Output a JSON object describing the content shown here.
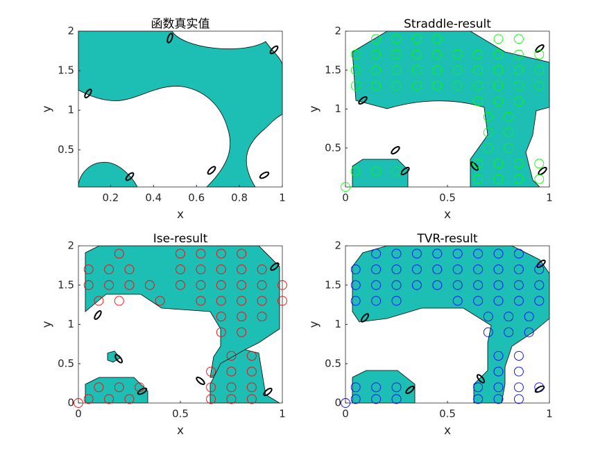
{
  "chart_data": [
    {
      "type": "contour",
      "title": "函数真实值",
      "xlabel": "x",
      "ylabel": "y",
      "xlim": [
        0.05,
        1
      ],
      "ylim": [
        0.03,
        2
      ],
      "xticks": [
        0.2,
        0.4,
        0.6,
        0.8,
        1
      ],
      "yticks": [
        0.5,
        1,
        1.5,
        2
      ]
    },
    {
      "type": "scatter",
      "title": "Straddle-result",
      "xlabel": "x",
      "ylabel": "y",
      "xlim": [
        0,
        1
      ],
      "ylim": [
        0,
        2
      ],
      "xticks": [
        0,
        0.5,
        1
      ],
      "yticks": [
        0.5,
        1,
        1.5,
        2
      ],
      "series": [
        {
          "color": "#00ff00",
          "x": [
            0.15,
            0.25,
            0.35,
            0.45,
            0.75,
            0.85,
            0.05,
            0.15,
            0.25,
            0.35,
            0.45,
            0.55,
            0.65,
            0.75,
            0.85,
            0.95,
            0.05,
            0.15,
            0.25,
            0.35,
            0.45,
            0.55,
            0.65,
            0.75,
            0.85,
            0.95,
            0.05,
            0.15,
            0.25,
            0.35,
            0.45,
            0.55,
            0.65,
            0.75,
            0.85,
            0.95,
            0.65,
            0.75,
            0.85,
            0.7,
            0.8,
            0.7,
            0.8,
            0.7,
            0.8,
            0.65,
            0.75,
            0.85,
            0.95,
            0.05,
            0.15,
            0.25,
            0.65,
            0.75,
            0.85,
            0.95,
            0
          ],
          "values": [
            1.9,
            1.9,
            1.9,
            1.9,
            1.9,
            1.9,
            1.7,
            1.7,
            1.7,
            1.7,
            1.7,
            1.7,
            1.7,
            1.7,
            1.7,
            1.7,
            1.5,
            1.5,
            1.5,
            1.5,
            1.5,
            1.5,
            1.5,
            1.5,
            1.5,
            1.5,
            1.3,
            1.3,
            1.3,
            1.3,
            1.3,
            1.3,
            1.3,
            1.3,
            1.3,
            1.3,
            1.1,
            1.1,
            1.1,
            0.9,
            0.9,
            0.7,
            0.7,
            0.5,
            0.5,
            0.3,
            0.3,
            0.3,
            0.3,
            0.2,
            0.2,
            0.2,
            0.1,
            0.1,
            0.1,
            0.1,
            0
          ]
        }
      ]
    },
    {
      "type": "scatter",
      "title": "Ise-result",
      "xlabel": "x",
      "ylabel": "y",
      "xlim": [
        0,
        1
      ],
      "ylim": [
        0,
        2
      ],
      "xticks": [
        0,
        0.5,
        1
      ],
      "yticks": [
        0,
        0.5,
        1,
        1.5,
        2
      ],
      "series": [
        {
          "color": "#ff0000",
          "x": [
            0.2,
            0.5,
            0.6,
            0.7,
            0.8,
            0.05,
            0.15,
            0.25,
            0.5,
            0.6,
            0.7,
            0.8,
            0.9,
            0.05,
            0.15,
            0.25,
            0.35,
            0.5,
            0.6,
            0.7,
            0.8,
            0.9,
            1,
            0.1,
            0.2,
            0.4,
            0.6,
            0.7,
            0.8,
            0.9,
            1,
            0.7,
            0.8,
            0.9,
            0.7,
            0.8,
            0.75,
            0.85,
            0.65,
            0.75,
            0.85,
            0.1,
            0.2,
            0.3,
            0.65,
            0.75,
            0.85,
            0.05,
            0.15,
            0.25,
            0.65,
            0.75,
            0.85,
            0
          ],
          "values": [
            1.9,
            1.9,
            1.9,
            1.9,
            1.9,
            1.7,
            1.7,
            1.7,
            1.7,
            1.7,
            1.7,
            1.7,
            1.7,
            1.5,
            1.5,
            1.5,
            1.5,
            1.5,
            1.5,
            1.5,
            1.5,
            1.5,
            1.5,
            1.3,
            1.3,
            1.3,
            1.3,
            1.3,
            1.3,
            1.3,
            1.3,
            1.1,
            1.1,
            1.1,
            0.9,
            0.9,
            0.6,
            0.6,
            0.4,
            0.4,
            0.4,
            0.2,
            0.2,
            0.2,
            0.2,
            0.2,
            0.2,
            0.05,
            0.05,
            0.05,
            0.05,
            0.05,
            0.05,
            0
          ]
        }
      ]
    },
    {
      "type": "scatter",
      "title": "TVR-result",
      "xlabel": "x",
      "ylabel": "y",
      "xlim": [
        0,
        1
      ],
      "ylim": [
        0,
        2
      ],
      "xticks": [
        0,
        0.5,
        1
      ],
      "yticks": [
        0,
        0.5,
        1,
        1.5,
        2
      ],
      "series": [
        {
          "color": "#0000ff",
          "x": [
            0.15,
            0.25,
            0.35,
            0.45,
            0.55,
            0.65,
            0.75,
            0.85,
            0.05,
            0.15,
            0.25,
            0.35,
            0.45,
            0.55,
            0.65,
            0.75,
            0.85,
            0.95,
            0.05,
            0.15,
            0.25,
            0.35,
            0.45,
            0.55,
            0.65,
            0.75,
            0.85,
            0.95,
            0.05,
            0.15,
            0.25,
            0.55,
            0.65,
            0.75,
            0.85,
            0.95,
            0.7,
            0.8,
            0.9,
            0.7,
            0.8,
            0.9,
            0.75,
            0.85,
            0.75,
            0.85,
            0.05,
            0.15,
            0.25,
            0.65,
            0.75,
            0.85,
            0.95,
            0.05,
            0.15,
            0.25,
            0.65,
            0.75,
            0.85,
            0
          ],
          "values": [
            1.9,
            1.9,
            1.9,
            1.9,
            1.9,
            1.9,
            1.9,
            1.9,
            1.7,
            1.7,
            1.7,
            1.7,
            1.7,
            1.7,
            1.7,
            1.7,
            1.7,
            1.7,
            1.5,
            1.5,
            1.5,
            1.5,
            1.5,
            1.5,
            1.5,
            1.5,
            1.5,
            1.5,
            1.3,
            1.3,
            1.3,
            1.3,
            1.3,
            1.3,
            1.3,
            1.3,
            1.1,
            1.1,
            1.1,
            0.9,
            0.9,
            0.9,
            0.6,
            0.6,
            0.4,
            0.4,
            0.2,
            0.2,
            0.2,
            0.2,
            0.2,
            0.2,
            0.2,
            0.05,
            0.05,
            0.05,
            0.05,
            0.05,
            0.05,
            0
          ]
        }
      ]
    }
  ]
}
